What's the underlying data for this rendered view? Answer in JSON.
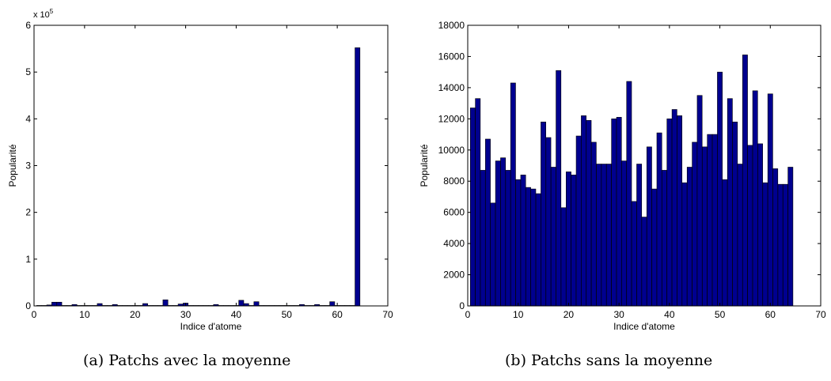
{
  "figure": {
    "captions": [
      "(a) Patchs avec la moyenne",
      "(b) Patchs sans la moyenne"
    ]
  },
  "colors": {
    "bar_fill": "#00008f",
    "bar_edge": "#000000",
    "axis": "#000000"
  },
  "chart_data": [
    {
      "type": "bar",
      "title": "",
      "xlabel": "Indice d'atome",
      "ylabel": "Popularité",
      "xlim": [
        0,
        70
      ],
      "ylim": [
        0,
        6
      ],
      "xticks": [
        0,
        10,
        20,
        30,
        40,
        50,
        60,
        70
      ],
      "yticks": [
        0,
        1,
        2,
        3,
        4,
        5,
        6
      ],
      "multiplier": "x 10",
      "multiplier_exp": "5",
      "grid": false,
      "legend": "none",
      "x": [
        1,
        2,
        3,
        4,
        5,
        6,
        7,
        8,
        9,
        10,
        11,
        12,
        13,
        14,
        15,
        16,
        17,
        18,
        19,
        20,
        21,
        22,
        23,
        24,
        25,
        26,
        27,
        28,
        29,
        30,
        31,
        32,
        33,
        34,
        35,
        36,
        37,
        38,
        39,
        40,
        41,
        42,
        43,
        44,
        45,
        46,
        47,
        48,
        49,
        50,
        51,
        52,
        53,
        54,
        55,
        56,
        57,
        58,
        59,
        60,
        61,
        62,
        63,
        64
      ],
      "values": [
        0.01,
        0.01,
        0.02,
        0.08,
        0.08,
        0.01,
        0.01,
        0.03,
        0.01,
        0.01,
        0.01,
        0.01,
        0.05,
        0.01,
        0.01,
        0.03,
        0.01,
        0.01,
        0.01,
        0.01,
        0.01,
        0.05,
        0.01,
        0.01,
        0.01,
        0.13,
        0.01,
        0.01,
        0.04,
        0.06,
        0.01,
        0.01,
        0.01,
        0.01,
        0.01,
        0.03,
        0.01,
        0.01,
        0.01,
        0.01,
        0.12,
        0.05,
        0.01,
        0.09,
        0.01,
        0.01,
        0.01,
        0.01,
        0.01,
        0.01,
        0.01,
        0.01,
        0.03,
        0.01,
        0.01,
        0.03,
        0.01,
        0.01,
        0.09,
        0.01,
        0.01,
        0.01,
        0.01,
        5.52
      ]
    },
    {
      "type": "bar",
      "title": "",
      "xlabel": "Indice d'atome",
      "ylabel": "Popularité",
      "xlim": [
        0,
        70
      ],
      "ylim": [
        0,
        18000
      ],
      "xticks": [
        0,
        10,
        20,
        30,
        40,
        50,
        60,
        70
      ],
      "yticks": [
        0,
        2000,
        4000,
        6000,
        8000,
        10000,
        12000,
        14000,
        16000,
        18000
      ],
      "grid": false,
      "legend": "none",
      "x": [
        1,
        2,
        3,
        4,
        5,
        6,
        7,
        8,
        9,
        10,
        11,
        12,
        13,
        14,
        15,
        16,
        17,
        18,
        19,
        20,
        21,
        22,
        23,
        24,
        25,
        26,
        27,
        28,
        29,
        30,
        31,
        32,
        33,
        34,
        35,
        36,
        37,
        38,
        39,
        40,
        41,
        42,
        43,
        44,
        45,
        46,
        47,
        48,
        49,
        50,
        51,
        52,
        53,
        54,
        55,
        56,
        57,
        58,
        59,
        60,
        61,
        62,
        63,
        64
      ],
      "values": [
        12700,
        13300,
        8700,
        10700,
        6600,
        9300,
        9500,
        8700,
        14300,
        8100,
        8400,
        7600,
        7500,
        7200,
        11800,
        10800,
        8900,
        15100,
        6300,
        8600,
        8400,
        10900,
        12200,
        11900,
        10500,
        9100,
        9100,
        9100,
        12000,
        12100,
        9300,
        14400,
        6700,
        9100,
        5700,
        10200,
        7500,
        11100,
        8700,
        12000,
        12600,
        12200,
        7900,
        8900,
        10500,
        13500,
        10200,
        11000,
        11000,
        15000,
        8100,
        13300,
        11800,
        9100,
        16100,
        10300,
        13800,
        10400,
        7900,
        13600,
        8800,
        7800,
        7800,
        8900
      ]
    }
  ]
}
